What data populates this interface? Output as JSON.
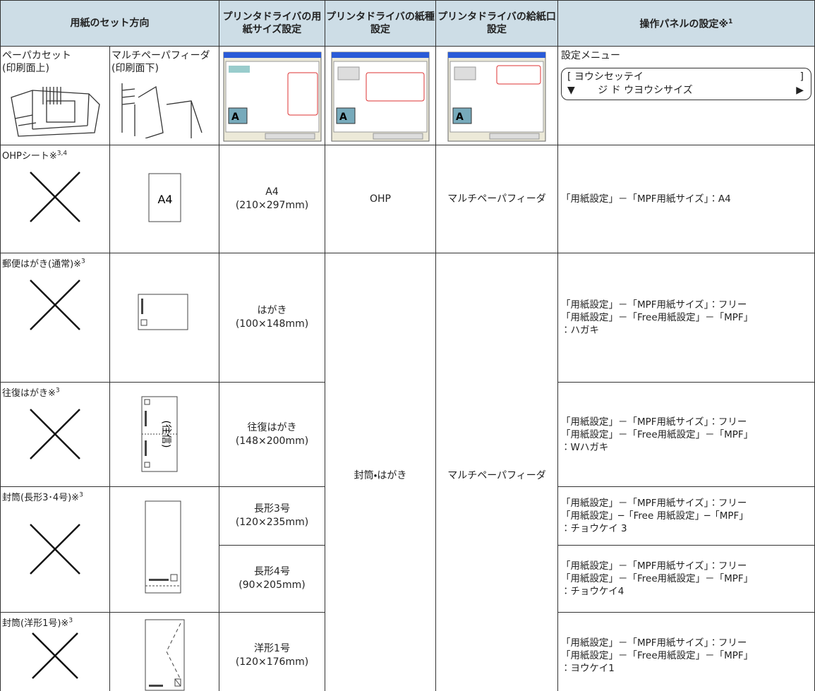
{
  "header": {
    "set_direction": "用紙のセット方向",
    "driver_size": "プリンタドライバの用紙サイズ設定",
    "driver_type": "プリンタドライバの紙種設定",
    "driver_source": "プリンタドライバの給紙口設定",
    "panel": "操作パネルの設定※",
    "panel_sup": "1"
  },
  "setup_row": {
    "cassette": "ペーパカセット",
    "cassette_side": "(印刷面上)",
    "mpf": "マルチペーパフィーダ",
    "mpf_side": "(印刷面下)",
    "panel_label": "設定メニュー",
    "lcd_line1": "[ ヨウシセッテイ",
    "lcd_bracket": "]",
    "lcd_line2": "▼　　 ジ ド ウヨウシサイズ",
    "lcd_arrow": "▶"
  },
  "rows": [
    {
      "media": "OHPシート※",
      "media_sup": "3,4",
      "icon_text": "A4",
      "size": "A4",
      "size_mm": "(210×297mm)",
      "paper_type": "OHP",
      "source": "マルチペーパフィーダ",
      "panel": [
        "「用紙設定」－「MPF用紙サイズ」：A4"
      ]
    },
    {
      "media": "郵便はがき(通常)※",
      "media_sup": "3",
      "size": "はがき",
      "size_mm": "(100×148mm)",
      "panel": [
        "「用紙設定」－「MPF用紙サイズ」：フリー",
        "「用紙設定」－「Free用紙設定」－「MPF」",
        "：ハガキ"
      ]
    },
    {
      "media": "往復はがき※",
      "media_sup": "3",
      "icon_text": "(往信)",
      "size": "往復はがき",
      "size_mm": "(148×200mm)",
      "panel": [
        "「用紙設定」－「MPF用紙サイズ」：フリー",
        "「用紙設定」－「Free用紙設定」－「MPF」",
        "：Wハガキ"
      ]
    },
    {
      "media": "封筒(長形3･4号)※",
      "media_sup": "3",
      "size": "長形3号",
      "size_mm": "(120×235mm)",
      "panel": [
        "「用紙設定」－「MPF用紙サイズ」：フリー",
        "「用紙設定」─「Free 用紙設定」─「MPF」",
        "：チョウケイ 3"
      ]
    },
    {
      "size": "長形4号",
      "size_mm": "(90×205mm)",
      "panel": [
        "「用紙設定」－「MPF用紙サイズ」：フリー",
        "「用紙設定」－「Free用紙設定」－「MPF」",
        "：チョウケイ4"
      ]
    },
    {
      "media": "封筒(洋形1号)※",
      "media_sup": "3",
      "size": "洋形1号",
      "size_mm": "(120×176mm)",
      "panel": [
        "「用紙設定」－「MPF用紙サイズ」：フリー",
        "「用紙設定」－「Free用紙設定」－「MPF」",
        "：ヨウケイ1"
      ]
    }
  ],
  "shared_paper_type": "封筒・はがき",
  "shared_source": "マルチペーパフィーダ"
}
